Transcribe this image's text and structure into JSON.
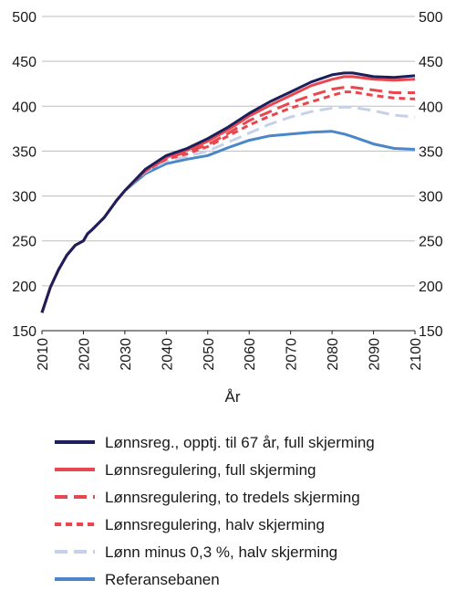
{
  "chart_data": {
    "type": "line",
    "title": "",
    "xlabel": "År",
    "ylabel": "",
    "xlim": [
      2010,
      2100
    ],
    "ylim": [
      150,
      500
    ],
    "x_ticks": [
      "2010",
      "2020",
      "2030",
      "2040",
      "2050",
      "2060",
      "2070",
      "2080",
      "2090",
      "2100"
    ],
    "y_ticks": [
      "150",
      "200",
      "250",
      "300",
      "350",
      "400",
      "450",
      "500"
    ],
    "grid": true,
    "legend_position": "bottom",
    "x": [
      2010,
      2012,
      2014,
      2016,
      2018,
      2020,
      2021,
      2022,
      2025,
      2028,
      2030,
      2035,
      2040,
      2045,
      2050,
      2055,
      2060,
      2065,
      2070,
      2075,
      2080,
      2083,
      2085,
      2090,
      2095,
      2100
    ],
    "series": [
      {
        "name": "Lønnsreg., opptj. til 67 år, full skjerming",
        "color": "#1b1f5c",
        "dash": "solid",
        "values": [
          170,
          198,
          218,
          234,
          245,
          250,
          258,
          262,
          276,
          295,
          306,
          330,
          345,
          353,
          364,
          377,
          392,
          405,
          416,
          427,
          435,
          437,
          437,
          433,
          432,
          434
        ]
      },
      {
        "name": "Lønnsregulering, full skjerming",
        "color": "#e8474f",
        "dash": "solid",
        "values": [
          170,
          198,
          218,
          234,
          245,
          250,
          258,
          262,
          276,
          295,
          306,
          329,
          343,
          351,
          361,
          374,
          389,
          401,
          412,
          423,
          430,
          433,
          433,
          430,
          429,
          430
        ]
      },
      {
        "name": "Lønnsregulering, to tredels skjerming",
        "color": "#e8474f",
        "dash": "long",
        "values": [
          170,
          198,
          218,
          234,
          245,
          250,
          258,
          262,
          276,
          295,
          306,
          328,
          342,
          349,
          357,
          370,
          384,
          394,
          404,
          412,
          419,
          421,
          421,
          418,
          415,
          415
        ]
      },
      {
        "name": "Lønnsregulering, halv skjerming",
        "color": "#e8474f",
        "dash": "short",
        "values": [
          170,
          198,
          218,
          234,
          245,
          250,
          258,
          262,
          276,
          295,
          306,
          328,
          341,
          347,
          355,
          367,
          379,
          389,
          398,
          405,
          412,
          416,
          416,
          412,
          409,
          408
        ]
      },
      {
        "name": "Lønn minus 0,3 %, halv skjerming",
        "color": "#c5d1ea",
        "dash": "long",
        "values": [
          170,
          198,
          218,
          234,
          245,
          250,
          258,
          262,
          276,
          295,
          306,
          327,
          339,
          344,
          350,
          360,
          370,
          380,
          388,
          394,
          398,
          399,
          399,
          395,
          390,
          388
        ]
      },
      {
        "name": "Referansebanen",
        "color": "#4a86c8",
        "dash": "solid",
        "values": [
          170,
          198,
          218,
          234,
          245,
          250,
          258,
          262,
          276,
          295,
          306,
          325,
          336,
          341,
          345,
          354,
          362,
          367,
          369,
          371,
          372,
          369,
          366,
          358,
          353,
          352
        ]
      }
    ]
  }
}
